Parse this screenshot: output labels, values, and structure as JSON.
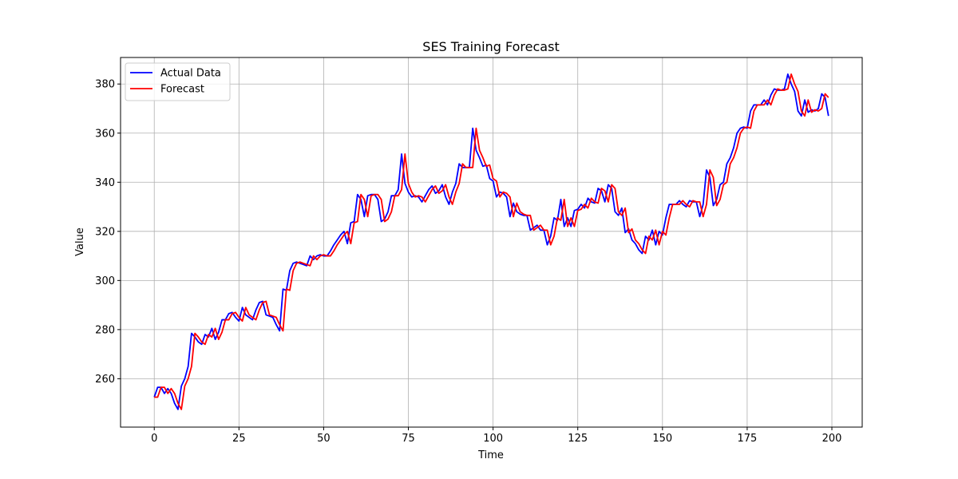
{
  "chart_data": {
    "type": "line",
    "title": "SES Training Forecast",
    "xlabel": "Time",
    "ylabel": "Value",
    "x": [
      0,
      1,
      2,
      3,
      4,
      5,
      6,
      7,
      8,
      9,
      10,
      11,
      12,
      13,
      14,
      15,
      16,
      17,
      18,
      19,
      20,
      21,
      22,
      23,
      24,
      25,
      26,
      27,
      28,
      29,
      30,
      31,
      32,
      33,
      34,
      35,
      36,
      37,
      38,
      39,
      40,
      41,
      42,
      43,
      44,
      45,
      46,
      47,
      48,
      49,
      50,
      51,
      52,
      53,
      54,
      55,
      56,
      57,
      58,
      59,
      60,
      61,
      62,
      63,
      64,
      65,
      66,
      67,
      68,
      69,
      70,
      71,
      72,
      73,
      74,
      75,
      76,
      77,
      78,
      79,
      80,
      81,
      82,
      83,
      84,
      85,
      86,
      87,
      88,
      89,
      90,
      91,
      92,
      93,
      94,
      95,
      96,
      97,
      98,
      99,
      100,
      101,
      102,
      103,
      104,
      105,
      106,
      107,
      108,
      109,
      110,
      111,
      112,
      113,
      114,
      115,
      116,
      117,
      118,
      119,
      120,
      121,
      122,
      123,
      124,
      125,
      126,
      127,
      128,
      129,
      130,
      131,
      132,
      133,
      134,
      135,
      136,
      137,
      138,
      139,
      140,
      141,
      142,
      143,
      144,
      145,
      146,
      147,
      148,
      149,
      150,
      151,
      152,
      153,
      154,
      155,
      156,
      157,
      158,
      159,
      160,
      161,
      162,
      163,
      164,
      165,
      166,
      167,
      168,
      169,
      170,
      171,
      172,
      173,
      174,
      175,
      176,
      177,
      178,
      179,
      180,
      181,
      182,
      183,
      184,
      185,
      186,
      187,
      188,
      189,
      190,
      191,
      192,
      193,
      194,
      195,
      196,
      197,
      198,
      199
    ],
    "series": [
      {
        "name": "Actual Data",
        "color": "#0000ff",
        "values": [
          252.5,
          256.5,
          256.5,
          254,
          256,
          254,
          250,
          247.5,
          257,
          260,
          265,
          278.5,
          277,
          275,
          274,
          278,
          277,
          280.5,
          276,
          279,
          284,
          284,
          286.5,
          287,
          285,
          283.5,
          289,
          286,
          285,
          284,
          288,
          291,
          291.5,
          286,
          285.5,
          285,
          282,
          279.5,
          296.5,
          296,
          304,
          307,
          307.5,
          307,
          306.5,
          306,
          310,
          308.5,
          310,
          310.5,
          310,
          310,
          312,
          314.5,
          316.5,
          318.5,
          320,
          315,
          323.5,
          324,
          335,
          333,
          326,
          334.5,
          335,
          335,
          333,
          324,
          325,
          328,
          334.5,
          334.5,
          337,
          351.5,
          339.5,
          336,
          334,
          334.5,
          334,
          332,
          334.5,
          337,
          338.5,
          335.5,
          336.5,
          339,
          334,
          331,
          336,
          339.5,
          347.5,
          346,
          346,
          346,
          362,
          353,
          350,
          346.5,
          347,
          341.5,
          340.5,
          334,
          336,
          335.5,
          334,
          326,
          331.5,
          328,
          327,
          326.5,
          326.5,
          320.5,
          321.5,
          322.5,
          320.5,
          320.5,
          314.5,
          318,
          325.5,
          324.5,
          333,
          322,
          325.5,
          322,
          328.5,
          329,
          331,
          329.5,
          333.5,
          332,
          331.5,
          337.5,
          336.5,
          332,
          339,
          337.5,
          328,
          326.5,
          329.5,
          319.5,
          321,
          316.5,
          315,
          312.5,
          311,
          318,
          316.5,
          320.5,
          314.5,
          320,
          318.5,
          325.5,
          331,
          331,
          331,
          332.5,
          331,
          330,
          332.5,
          332,
          332,
          326,
          331,
          345,
          342,
          330.5,
          333,
          339,
          340,
          347.5,
          350,
          354,
          360,
          362,
          362.5,
          362,
          369,
          371.5,
          371.5,
          371.5,
          373.5,
          371.5,
          375.5,
          378,
          377.5,
          377.5,
          378,
          384,
          380,
          377,
          369,
          367,
          373.5,
          368.5,
          369.5,
          369,
          370,
          376,
          374.5,
          367
        ]
      },
      {
        "name": "Forecast",
        "color": "#ff0000",
        "values": [
          252.5,
          252.5,
          256.5,
          256.5,
          254,
          256,
          254,
          250,
          247.5,
          257,
          260,
          265,
          278.5,
          277,
          275,
          274,
          278,
          277,
          280.5,
          276,
          279,
          284,
          284,
          286.5,
          287,
          285,
          283.5,
          289,
          286,
          285,
          284,
          288,
          291,
          291.5,
          286,
          285.5,
          285,
          282,
          279.5,
          296.5,
          296,
          304,
          307,
          307.5,
          307,
          306.5,
          306,
          310,
          308.5,
          310,
          310.5,
          310,
          310,
          312,
          314.5,
          316.5,
          318.5,
          320,
          315,
          323.5,
          324,
          335,
          333,
          326,
          334.5,
          335,
          335,
          333,
          324,
          325,
          328,
          334.5,
          334.5,
          337,
          351.5,
          339.5,
          336,
          334,
          334.5,
          334,
          332,
          334.5,
          337,
          338.5,
          335.5,
          336.5,
          339,
          334,
          331,
          336,
          339.5,
          347.5,
          346,
          346,
          346,
          362,
          353,
          350,
          346.5,
          347,
          341.5,
          340.5,
          334,
          336,
          335.5,
          334,
          326,
          331.5,
          328,
          327,
          326.5,
          326.5,
          320.5,
          321.5,
          322.5,
          320.5,
          320.5,
          314.5,
          318,
          325.5,
          324.5,
          333,
          322,
          325.5,
          322,
          328.5,
          329,
          331,
          329.5,
          333.5,
          332,
          331.5,
          337.5,
          336.5,
          332,
          339,
          337.5,
          328,
          326.5,
          329.5,
          319.5,
          321,
          316.5,
          315,
          312.5,
          311,
          318,
          316.5,
          320.5,
          314.5,
          320,
          318.5,
          325.5,
          331,
          331,
          331,
          332.5,
          331,
          330,
          332.5,
          332,
          332,
          326,
          331,
          345,
          342,
          330.5,
          333,
          339,
          340,
          347.5,
          350,
          354,
          360,
          362,
          362.5,
          362,
          369,
          371.5,
          371.5,
          371.5,
          373.5,
          371.5,
          375.5,
          378,
          377.5,
          377.5,
          378,
          384,
          380,
          377,
          369,
          367,
          373.5,
          368.5,
          369.5,
          369,
          370,
          376,
          374.5
        ]
      }
    ],
    "xlim": [
      -9.95,
      208.95
    ],
    "ylim": [
      240.3,
      390.8
    ],
    "xticks": [
      0,
      25,
      50,
      75,
      100,
      125,
      150,
      175,
      200
    ],
    "yticks": [
      260,
      280,
      300,
      320,
      340,
      360,
      380
    ],
    "grid": true,
    "legend": "upper left"
  }
}
